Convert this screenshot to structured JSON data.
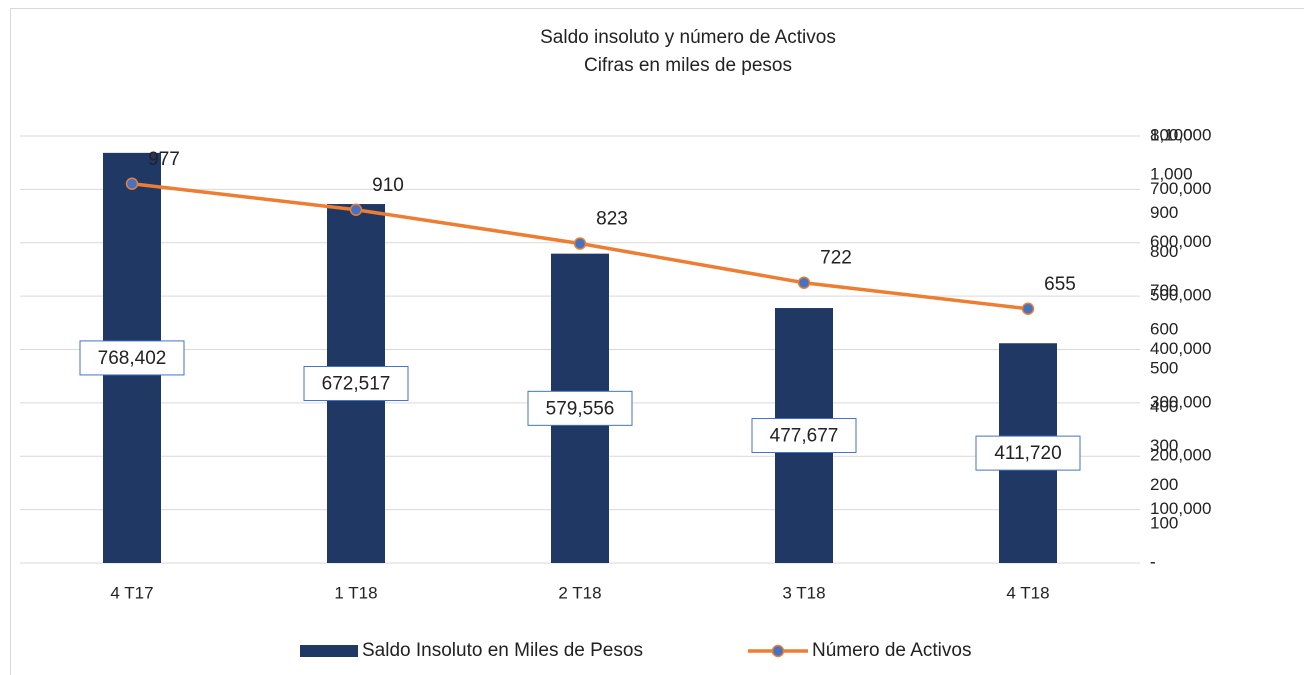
{
  "chart_data": {
    "type": "bar_line",
    "title": "Saldo insoluto y número de Activos",
    "subtitle": "Cifras en  miles de pesos",
    "categories": [
      "4 T17",
      "1 T18",
      "2 T18",
      "3 T18",
      "4 T18"
    ],
    "series": [
      {
        "name": "Saldo Insoluto en  Miles de Pesos",
        "type": "bar",
        "color": "#1f3864",
        "values": [
          768402,
          672517,
          579556,
          477677,
          411720
        ],
        "value_labels": [
          "768,402",
          "672,517",
          "579,556",
          "477,677",
          "411,720"
        ]
      },
      {
        "name": "Número de Activos",
        "type": "line",
        "axis": "y2",
        "color": "#ed7d31",
        "marker_color": "#4472c4",
        "values": [
          977,
          910,
          823,
          722,
          655
        ]
      }
    ],
    "ylim": [
      0,
      800000
    ],
    "yticks": [
      {
        "value": 0,
        "label": "-"
      },
      {
        "value": 100000,
        "label": "100,000"
      },
      {
        "value": 200000,
        "label": "200,000"
      },
      {
        "value": 300000,
        "label": "300,000"
      },
      {
        "value": 400000,
        "label": "400,000"
      },
      {
        "value": 500000,
        "label": "500,000"
      },
      {
        "value": 600000,
        "label": "600,000"
      },
      {
        "value": 700000,
        "label": "700,000"
      },
      {
        "value": 800000,
        "label": "800,000"
      }
    ],
    "y2lim": [
      0,
      1100
    ],
    "y2ticks": [
      {
        "value": 0,
        "label": "-"
      },
      100,
      200,
      300,
      400,
      500,
      600,
      700,
      800,
      900,
      {
        "value": 1000,
        "label": "1,000"
      },
      {
        "value": 1100,
        "label": "1,100"
      }
    ],
    "grid": true,
    "legend": "bottom"
  }
}
